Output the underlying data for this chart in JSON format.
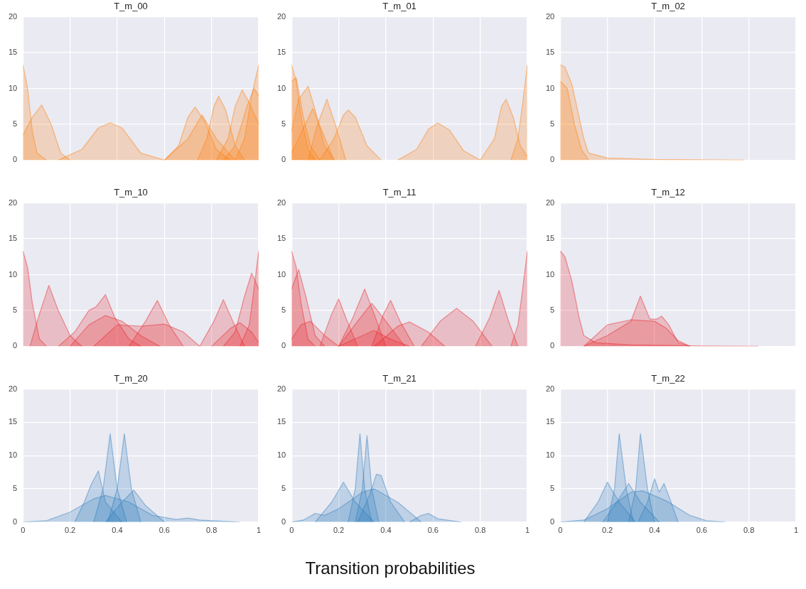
{
  "chart_data": [
    {
      "type": "area",
      "title": "T_m_00",
      "xlim": [
        0,
        1
      ],
      "ylim": [
        0,
        20
      ],
      "xticks": [
        0,
        0.2,
        0.4,
        0.6,
        0.8,
        1
      ],
      "yticks": [
        0,
        5,
        10,
        15,
        20
      ],
      "grid": true,
      "tick_labels": "y",
      "series": [
        {
          "color": "#ff7f0e",
          "x": [
            0,
            0.02,
            0.04,
            0.06,
            0.1
          ],
          "values": [
            13.3,
            10,
            4,
            1,
            0
          ]
        },
        {
          "color": "#ff7f0e",
          "x": [
            0,
            0.04,
            0.08,
            0.12,
            0.16,
            0.2
          ],
          "values": [
            3.5,
            6,
            7.7,
            5,
            1,
            0
          ]
        },
        {
          "color": "#ff7f0e",
          "x": [
            0.15,
            0.25,
            0.32,
            0.37,
            0.42,
            0.5,
            0.6
          ],
          "values": [
            0,
            1.5,
            4.5,
            5.2,
            4.5,
            1,
            0
          ]
        },
        {
          "color": "#ff7f0e",
          "x": [
            0.6,
            0.66,
            0.7,
            0.73,
            0.77,
            0.82,
            0.88
          ],
          "values": [
            0,
            2,
            6,
            7.4,
            5.5,
            1.5,
            0
          ]
        },
        {
          "color": "#ff7f0e",
          "x": [
            0.6,
            0.7,
            0.76,
            0.82,
            0.9
          ],
          "values": [
            0,
            3,
            6.3,
            3,
            0
          ]
        },
        {
          "color": "#ff7f0e",
          "x": [
            0.74,
            0.78,
            0.81,
            0.83,
            0.86,
            0.9,
            0.94
          ],
          "values": [
            0,
            3,
            7.5,
            8.9,
            7,
            2,
            0
          ]
        },
        {
          "color": "#ff7f0e",
          "x": [
            0.82,
            0.87,
            0.9,
            0.93,
            0.96,
            1
          ],
          "values": [
            0,
            3,
            7.5,
            9.8,
            8,
            5
          ]
        },
        {
          "color": "#ff7f0e",
          "x": [
            0.85,
            0.9,
            0.95,
            0.98,
            1
          ],
          "values": [
            0,
            2,
            7.5,
            10,
            9
          ]
        },
        {
          "color": "#ff7f0e",
          "x": [
            0.9,
            0.94,
            0.97,
            1
          ],
          "values": [
            0,
            3,
            9,
            13.3
          ]
        }
      ]
    },
    {
      "type": "area",
      "title": "T_m_01",
      "xlim": [
        0,
        1
      ],
      "ylim": [
        0,
        20
      ],
      "xticks": [
        0,
        0.2,
        0.4,
        0.6,
        0.8,
        1
      ],
      "yticks": [
        0,
        5,
        10,
        15,
        20
      ],
      "grid": true,
      "tick_labels": "y",
      "series": [
        {
          "color": "#ff7f0e",
          "x": [
            0,
            0.02,
            0.04,
            0.07,
            0.1
          ],
          "values": [
            13.3,
            11,
            6,
            1.5,
            0
          ]
        },
        {
          "color": "#ff7f0e",
          "x": [
            0,
            0.02,
            0.05,
            0.08,
            0.12
          ],
          "values": [
            11,
            11.5,
            6,
            2,
            0
          ]
        },
        {
          "color": "#ff7f0e",
          "x": [
            0,
            0.03,
            0.07,
            0.1,
            0.14,
            0.18
          ],
          "values": [
            4,
            8.5,
            10.3,
            7,
            2,
            0
          ]
        },
        {
          "color": "#ff7f0e",
          "x": [
            0,
            0.05,
            0.09,
            0.13,
            0.18
          ],
          "values": [
            1,
            4.5,
            7.2,
            4,
            0
          ]
        },
        {
          "color": "#ff7f0e",
          "x": [
            0.07,
            0.11,
            0.15,
            0.19,
            0.23
          ],
          "values": [
            0,
            5,
            8.5,
            4.5,
            0
          ]
        },
        {
          "color": "#ff7f0e",
          "x": [
            0.12,
            0.18,
            0.22,
            0.24,
            0.27,
            0.32,
            0.38
          ],
          "values": [
            0,
            3,
            6.3,
            7,
            6,
            2,
            0
          ]
        },
        {
          "color": "#ff7f0e",
          "x": [
            0.45,
            0.53,
            0.58,
            0.62,
            0.67,
            0.73,
            0.8
          ],
          "values": [
            0,
            1.5,
            4.3,
            5.2,
            4.2,
            1.3,
            0
          ]
        },
        {
          "color": "#ff7f0e",
          "x": [
            0.8,
            0.86,
            0.89,
            0.91,
            0.94,
            0.97,
            1
          ],
          "values": [
            0,
            3,
            7.5,
            8.5,
            6,
            2,
            0.5
          ]
        },
        {
          "color": "#ff7f0e",
          "x": [
            0.93,
            0.96,
            0.98,
            1
          ],
          "values": [
            0,
            3,
            8,
            13.3
          ]
        }
      ]
    },
    {
      "type": "area",
      "title": "T_m_02",
      "xlim": [
        0,
        1
      ],
      "ylim": [
        0,
        20
      ],
      "xticks": [
        0,
        0.2,
        0.4,
        0.6,
        0.8,
        1
      ],
      "yticks": [
        0,
        5,
        10,
        15,
        20
      ],
      "grid": true,
      "tick_labels": "y",
      "series": [
        {
          "color": "#ff7f0e",
          "x": [
            0,
            0.02,
            0.05,
            0.08,
            0.1,
            0.12,
            0.2,
            0.4,
            0.78
          ],
          "values": [
            13.3,
            13,
            10.5,
            6,
            3,
            1,
            0.3,
            0.1,
            0
          ]
        },
        {
          "color": "#ff7f0e",
          "x": [
            0,
            0.03,
            0.06,
            0.09,
            0.12
          ],
          "values": [
            11,
            10,
            5,
            1.5,
            0
          ]
        }
      ]
    },
    {
      "type": "area",
      "title": "T_m_10",
      "xlim": [
        0,
        1
      ],
      "ylim": [
        0,
        20
      ],
      "xticks": [
        0,
        0.2,
        0.4,
        0.6,
        0.8,
        1
      ],
      "yticks": [
        0,
        5,
        10,
        15,
        20
      ],
      "grid": true,
      "tick_labels": "y",
      "series": [
        {
          "color": "#e8282b",
          "x": [
            0,
            0.02,
            0.04,
            0.07,
            0.1
          ],
          "values": [
            13.3,
            11,
            6,
            1,
            0
          ]
        },
        {
          "color": "#e8282b",
          "x": [
            0.03,
            0.07,
            0.11,
            0.15,
            0.2,
            0.25
          ],
          "values": [
            0,
            4.5,
            8.5,
            5,
            1.5,
            0
          ]
        },
        {
          "color": "#e8282b",
          "x": [
            0.15,
            0.22,
            0.28,
            0.31,
            0.35,
            0.39,
            0.45,
            0.5
          ],
          "values": [
            0,
            2,
            5,
            5.5,
            7.2,
            4,
            1,
            0
          ]
        },
        {
          "color": "#e8282b",
          "x": [
            0.2,
            0.28,
            0.35,
            0.42,
            0.5,
            0.58
          ],
          "values": [
            0,
            3,
            4.3,
            3.5,
            1.5,
            0
          ]
        },
        {
          "color": "#e8282b",
          "x": [
            0.3,
            0.4,
            0.5,
            0.6,
            0.68,
            0.75
          ],
          "values": [
            0,
            3,
            2.8,
            3.1,
            2,
            0
          ]
        },
        {
          "color": "#e8282b",
          "x": [
            0.45,
            0.52,
            0.57,
            0.62,
            0.68
          ],
          "values": [
            0,
            3.5,
            6.4,
            3,
            0
          ]
        },
        {
          "color": "#e8282b",
          "x": [
            0.75,
            0.81,
            0.85,
            0.89,
            0.94
          ],
          "values": [
            0,
            3.5,
            6.5,
            3.5,
            0
          ]
        },
        {
          "color": "#e8282b",
          "x": [
            0.8,
            0.88,
            0.92,
            0.97,
            1
          ],
          "values": [
            0,
            2.5,
            3.3,
            2,
            0.5
          ]
        },
        {
          "color": "#e8282b",
          "x": [
            0.85,
            0.9,
            0.94,
            0.97,
            1
          ],
          "values": [
            0,
            2,
            7,
            10.2,
            8
          ]
        },
        {
          "color": "#e8282b",
          "x": [
            0.92,
            0.96,
            0.98,
            1
          ],
          "values": [
            0,
            3,
            8,
            13.3
          ]
        }
      ]
    },
    {
      "type": "area",
      "title": "T_m_11",
      "xlim": [
        0,
        1
      ],
      "ylim": [
        0,
        20
      ],
      "xticks": [
        0,
        0.2,
        0.4,
        0.6,
        0.8,
        1
      ],
      "yticks": [
        0,
        5,
        10,
        15,
        20
      ],
      "grid": true,
      "tick_labels": "y",
      "series": [
        {
          "color": "#e8282b",
          "x": [
            0,
            0.02,
            0.04,
            0.07,
            0.1
          ],
          "values": [
            13.3,
            11,
            6,
            1,
            0
          ]
        },
        {
          "color": "#e8282b",
          "x": [
            0,
            0.03,
            0.06,
            0.1,
            0.14
          ],
          "values": [
            8,
            10.7,
            7,
            1.5,
            0
          ]
        },
        {
          "color": "#e8282b",
          "x": [
            0,
            0.04,
            0.08,
            0.14,
            0.2
          ],
          "values": [
            1,
            3,
            3.5,
            1.5,
            0
          ]
        },
        {
          "color": "#e8282b",
          "x": [
            0.12,
            0.17,
            0.2,
            0.23,
            0.28
          ],
          "values": [
            0,
            4.5,
            6.6,
            4,
            0
          ]
        },
        {
          "color": "#e8282b",
          "x": [
            0.2,
            0.26,
            0.31,
            0.35,
            0.4
          ],
          "values": [
            0,
            4,
            8,
            4.5,
            0
          ]
        },
        {
          "color": "#e8282b",
          "x": [
            0.2,
            0.28,
            0.34,
            0.4,
            0.48
          ],
          "values": [
            0,
            3.5,
            6,
            3.5,
            0
          ]
        },
        {
          "color": "#e8282b",
          "x": [
            0.2,
            0.3,
            0.35,
            0.42,
            0.5
          ],
          "values": [
            0,
            1.5,
            2.2,
            1,
            0
          ]
        },
        {
          "color": "#e8282b",
          "x": [
            0.34,
            0.39,
            0.42,
            0.46,
            0.52
          ],
          "values": [
            0,
            4.5,
            6.4,
            3.5,
            0
          ]
        },
        {
          "color": "#e8282b",
          "x": [
            0.35,
            0.45,
            0.5,
            0.58,
            0.65
          ],
          "values": [
            0,
            2.8,
            3.4,
            2,
            0
          ]
        },
        {
          "color": "#e8282b",
          "x": [
            0.55,
            0.63,
            0.7,
            0.77,
            0.85
          ],
          "values": [
            0,
            3.5,
            5.3,
            3.5,
            0
          ]
        },
        {
          "color": "#e8282b",
          "x": [
            0.78,
            0.84,
            0.88,
            0.92,
            0.96
          ],
          "values": [
            0,
            4,
            7.8,
            3.5,
            0
          ]
        },
        {
          "color": "#e8282b",
          "x": [
            0.93,
            0.96,
            0.98,
            1
          ],
          "values": [
            0,
            3,
            8,
            13.3
          ]
        }
      ]
    },
    {
      "type": "area",
      "title": "T_m_12",
      "xlim": [
        0,
        1
      ],
      "ylim": [
        0,
        20
      ],
      "xticks": [
        0,
        0.2,
        0.4,
        0.6,
        0.8,
        1
      ],
      "yticks": [
        0,
        5,
        10,
        15,
        20
      ],
      "grid": true,
      "tick_labels": "y",
      "series": [
        {
          "color": "#e8282b",
          "x": [
            0,
            0.02,
            0.05,
            0.08,
            0.1,
            0.15,
            0.3,
            0.6,
            0.84
          ],
          "values": [
            13.3,
            12.5,
            9,
            4,
            1.5,
            0.5,
            0.2,
            0.05,
            0
          ]
        },
        {
          "color": "#e8282b",
          "x": [
            0.1,
            0.15,
            0.2,
            0.3,
            0.4,
            0.45,
            0.5,
            0.55
          ],
          "values": [
            0,
            1.5,
            3,
            3.7,
            3.5,
            2.5,
            0.8,
            0
          ]
        },
        {
          "color": "#e8282b",
          "x": [
            0.1,
            0.2,
            0.3,
            0.34,
            0.38,
            0.41,
            0.43,
            0.46,
            0.5,
            0.55
          ],
          "values": [
            0,
            1.5,
            3.5,
            7,
            3.8,
            3.8,
            4.2,
            3,
            0.5,
            0
          ]
        }
      ]
    },
    {
      "type": "area",
      "title": "T_m_20",
      "xlim": [
        0,
        1
      ],
      "ylim": [
        0,
        20
      ],
      "xticks": [
        0,
        0.2,
        0.4,
        0.6,
        0.8,
        1
      ],
      "yticks": [
        0,
        5,
        10,
        15,
        20
      ],
      "grid": true,
      "series": [
        {
          "color": "#2f7ebc",
          "x": [
            0,
            0.1,
            0.2,
            0.3,
            0.35,
            0.45,
            0.55,
            0.65,
            0.7,
            0.75,
            0.92
          ],
          "values": [
            0,
            0.2,
            1.5,
            3.5,
            4,
            3,
            1,
            0.4,
            0.6,
            0.3,
            0
          ]
        },
        {
          "color": "#2f7ebc",
          "x": [
            0.22,
            0.26,
            0.29,
            0.32,
            0.35,
            0.42
          ],
          "values": [
            0,
            3,
            5.7,
            7.7,
            3,
            0
          ]
        },
        {
          "color": "#2f7ebc",
          "x": [
            0.35,
            0.42,
            0.47,
            0.52,
            0.6
          ],
          "values": [
            0,
            3,
            4.8,
            2.5,
            0
          ]
        },
        {
          "color": "#2f7ebc",
          "x": [
            0.3,
            0.34,
            0.37,
            0.4,
            0.44
          ],
          "values": [
            0,
            5,
            13.3,
            5,
            0
          ]
        },
        {
          "color": "#2f7ebc",
          "x": [
            0.36,
            0.4,
            0.43,
            0.46,
            0.5
          ],
          "values": [
            0,
            5,
            13.3,
            5,
            0
          ]
        }
      ]
    },
    {
      "type": "area",
      "title": "T_m_21",
      "xlabel": "Transition probabilities",
      "xlim": [
        0,
        1
      ],
      "ylim": [
        0,
        20
      ],
      "xticks": [
        0,
        0.2,
        0.4,
        0.6,
        0.8,
        1
      ],
      "yticks": [
        0,
        5,
        10,
        15,
        20
      ],
      "grid": true,
      "series": [
        {
          "color": "#2f7ebc",
          "x": [
            0,
            0.05,
            0.1,
            0.14,
            0.2,
            0.3,
            0.35,
            0.45,
            0.55
          ],
          "values": [
            0,
            0.3,
            1.3,
            1,
            2,
            4.5,
            5,
            3,
            0
          ]
        },
        {
          "color": "#2f7ebc",
          "x": [
            0.5,
            0.55,
            0.58,
            0.62,
            0.72
          ],
          "values": [
            0,
            1,
            1.3,
            0.5,
            0
          ]
        },
        {
          "color": "#2f7ebc",
          "x": [
            0.1,
            0.17,
            0.22,
            0.27,
            0.35
          ],
          "values": [
            0,
            3,
            6,
            3,
            0
          ]
        },
        {
          "color": "#2f7ebc",
          "x": [
            0.28,
            0.33,
            0.36,
            0.38,
            0.42,
            0.48
          ],
          "values": [
            0,
            4,
            7.2,
            7,
            3,
            0
          ]
        },
        {
          "color": "#2f7ebc",
          "x": [
            0.24,
            0.27,
            0.29,
            0.31,
            0.34
          ],
          "values": [
            0,
            5,
            13.3,
            5,
            0
          ]
        },
        {
          "color": "#2f7ebc",
          "x": [
            0.27,
            0.3,
            0.32,
            0.34,
            0.37
          ],
          "values": [
            0,
            5,
            13,
            5,
            0
          ]
        }
      ]
    },
    {
      "type": "area",
      "title": "T_m_22",
      "xlim": [
        0,
        1
      ],
      "ylim": [
        0,
        20
      ],
      "xticks": [
        0,
        0.2,
        0.4,
        0.6,
        0.8,
        1
      ],
      "yticks": [
        0,
        5,
        10,
        15,
        20
      ],
      "grid": true,
      "series": [
        {
          "color": "#2f7ebc",
          "x": [
            0,
            0.1,
            0.2,
            0.3,
            0.35,
            0.45,
            0.55,
            0.62,
            0.7
          ],
          "values": [
            0,
            0.3,
            2,
            4.5,
            4.7,
            3.2,
            1,
            0.2,
            0
          ]
        },
        {
          "color": "#2f7ebc",
          "x": [
            0.1,
            0.16,
            0.2,
            0.25,
            0.32
          ],
          "values": [
            0,
            3,
            6,
            3,
            0
          ]
        },
        {
          "color": "#2f7ebc",
          "x": [
            0.18,
            0.24,
            0.29,
            0.34,
            0.42
          ],
          "values": [
            0,
            3,
            5.8,
            3,
            0
          ]
        },
        {
          "color": "#2f7ebc",
          "x": [
            0.33,
            0.37,
            0.4,
            0.42,
            0.44,
            0.47,
            0.5
          ],
          "values": [
            0,
            3,
            6.5,
            4.5,
            5.8,
            3,
            0
          ]
        },
        {
          "color": "#2f7ebc",
          "x": [
            0.2,
            0.23,
            0.25,
            0.28,
            0.31
          ],
          "values": [
            0,
            5,
            13.3,
            5,
            0
          ]
        },
        {
          "color": "#2f7ebc",
          "x": [
            0.29,
            0.32,
            0.34,
            0.37,
            0.4
          ],
          "values": [
            0,
            5,
            13.3,
            5,
            0
          ]
        }
      ]
    }
  ]
}
